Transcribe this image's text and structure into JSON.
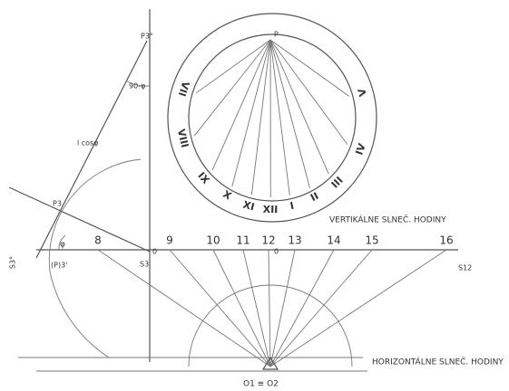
{
  "labels": {
    "p3_top": "P3°",
    "angle": "90-φ",
    "length": "l cosφ",
    "p3": "P3",
    "phi": "φ",
    "s3_left": "S3°",
    "p3_prime": "(P)3'",
    "s3": "S3",
    "zero_left": "0",
    "zero_mid": "0",
    "s12": "S12",
    "p": "P",
    "vertical_title": "VERTIKÁLNE SLNEČ. HODINY",
    "horizontal_title": "HORIZONTÁLNE SLNEČ. HODINY",
    "origin": "O1 ≡ O2"
  },
  "roman_numerals": [
    "VII",
    "VIII",
    "IX",
    "X",
    "XI",
    "XII",
    "I",
    "II",
    "III",
    "IV",
    "V"
  ],
  "hour_numbers": [
    "8",
    "9",
    "10",
    "11",
    "12",
    "13",
    "14",
    "15",
    "16"
  ]
}
